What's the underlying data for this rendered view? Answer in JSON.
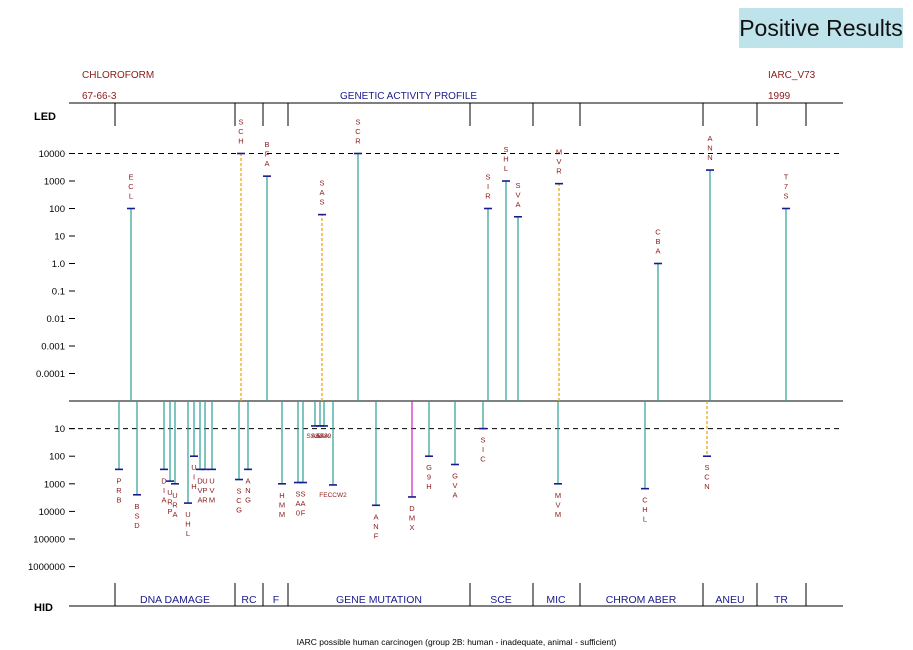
{
  "badge": "Positive Results",
  "header": {
    "agent": "CHLOROFORM",
    "cas": "67-66-3",
    "profile_title": "GENETIC ACTIVITY PROFILE",
    "source": "IARC_V73",
    "year": "1999"
  },
  "footer": "IARC possible human carcinogen (group 2B: human - inadequate, animal - sufficient)",
  "colors": {
    "stick": "#2aa198",
    "label": "#8b1a1a",
    "blue": "#1a1a8c",
    "magenta": "#d020c0",
    "dashed": "#e8a200"
  },
  "chart_data": {
    "type": "genetic-activity-profile",
    "top_axis_label": "LED",
    "bottom_axis_label": "HID",
    "upper_ticks": [
      "0.0001",
      "0.001",
      "0.01",
      "0.1",
      "1.0",
      "10",
      "100",
      "1000",
      "10000"
    ],
    "lower_ticks": [
      "10",
      "100",
      "1000",
      "10000",
      "100000",
      "1000000"
    ],
    "groups": [
      "DNA DAMAGE",
      "RC",
      "F",
      "GENE MUTATION",
      "SCE",
      "MIC",
      "CHROM ABER",
      "ANEU",
      "TR"
    ],
    "positive": [
      {
        "label": "ECL",
        "x": 131,
        "dose": 100
      },
      {
        "label": "SCH",
        "x": 241,
        "dose": 10000,
        "dashed": true
      },
      {
        "label": "BFA",
        "x": 267,
        "dose": 1500
      },
      {
        "label": "SAS",
        "x": 322,
        "dose": 60,
        "dashed": true
      },
      {
        "label": "SCR",
        "x": 358,
        "dose": 10000
      },
      {
        "label": "SIR",
        "x": 488,
        "dose": 100
      },
      {
        "label": "SHL",
        "x": 506,
        "dose": 1000
      },
      {
        "label": "SVA",
        "x": 518,
        "dose": 50
      },
      {
        "label": "MVR",
        "x": 559,
        "dose": 800,
        "dashed": true
      },
      {
        "label": "CBA",
        "x": 658,
        "dose": 1
      },
      {
        "label": "ANN",
        "x": 710,
        "dose": 2500
      },
      {
        "label": "T7S",
        "x": 786,
        "dose": 100
      }
    ],
    "negative": [
      {
        "label": "PRB",
        "x": 119,
        "dose": 300
      },
      {
        "label": "BSD",
        "x": 137,
        "dose": 2500
      },
      {
        "label": "DIA",
        "x": 164,
        "dose": 300
      },
      {
        "label": "URP",
        "x": 170,
        "dose": 800
      },
      {
        "label": "URA",
        "x": 175,
        "dose": 1000
      },
      {
        "label": "UHL",
        "x": 188,
        "dose": 5000
      },
      {
        "label": "UIH",
        "x": 194,
        "dose": 100
      },
      {
        "label": "DVA",
        "x": 200,
        "dose": 300
      },
      {
        "label": "UPR",
        "x": 205,
        "dose": 300
      },
      {
        "label": "UVM",
        "x": 212,
        "dose": 300
      },
      {
        "label": "SCG",
        "x": 239,
        "dose": 700
      },
      {
        "label": "ANG",
        "x": 248,
        "dose": 300
      },
      {
        "label": "HMM",
        "x": 282,
        "dose": 1000
      },
      {
        "label": "SA0",
        "x": 298,
        "dose": 900
      },
      {
        "label": "SAF",
        "x": 303,
        "dose": 900
      },
      {
        "label": "SSSS",
        "x": 315,
        "dose": 8
      },
      {
        "label": "AAAA",
        "x": 320,
        "dose": 8
      },
      {
        "label": "5789",
        "x": 324,
        "dose": 8
      },
      {
        "label": "FECCW2",
        "x": 333,
        "dose": 1100
      },
      {
        "label": "ANF",
        "x": 376,
        "dose": 6000
      },
      {
        "label": "DMX",
        "x": 412,
        "dose": 3000,
        "magenta": true
      },
      {
        "label": "G9H",
        "x": 429,
        "dose": 100
      },
      {
        "label": "GVA",
        "x": 455,
        "dose": 200
      },
      {
        "label": "SIC",
        "x": 483,
        "dose": 10
      },
      {
        "label": "MVM",
        "x": 558,
        "dose": 1000
      },
      {
        "label": "CHL",
        "x": 645,
        "dose": 1500
      },
      {
        "label": "SCN",
        "x": 707,
        "dose": 100,
        "dashed": true
      }
    ]
  }
}
